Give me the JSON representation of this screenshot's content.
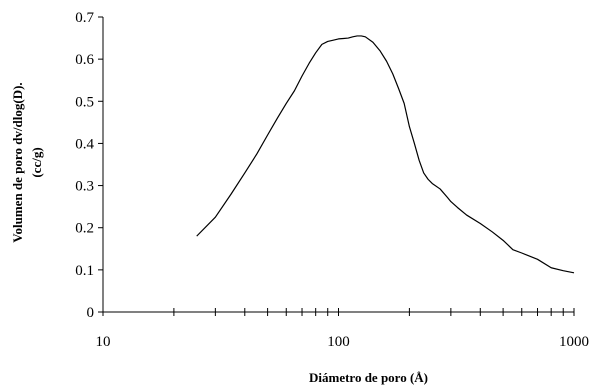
{
  "chart_data": {
    "type": "line",
    "title": "",
    "xlabel": "Diámetro de poro (Å)",
    "ylabel": "Volumen de poro dv/dlog(D).",
    "ylabel_unit": "(cc/g)",
    "x_scale": "log",
    "xlim": [
      10,
      1000
    ],
    "ylim": [
      0,
      0.7
    ],
    "x_ticks": [
      10,
      100,
      1000
    ],
    "x_tick_labels": [
      "10",
      "100",
      "1000"
    ],
    "y_ticks": [
      0,
      0.1,
      0.2,
      0.3,
      0.4,
      0.5,
      0.6,
      0.7
    ],
    "y_tick_labels": [
      "0",
      "0.1",
      "0.2",
      "0.3",
      "0.4",
      "0.5",
      "0.6",
      "0.7"
    ],
    "grid": false,
    "legend": "none",
    "line_color": "#000000",
    "series": [
      {
        "x": [
          25,
          30,
          35,
          40,
          45,
          50,
          55,
          60,
          65,
          70,
          75,
          80,
          85,
          90,
          95,
          100,
          105,
          110,
          115,
          120,
          125,
          130,
          140,
          150,
          160,
          170,
          180,
          190,
          200,
          210,
          220,
          230,
          240,
          250,
          270,
          290,
          300,
          320,
          350,
          400,
          450,
          500,
          550,
          600,
          700,
          800,
          900,
          1000
        ],
        "y": [
          0.18,
          0.225,
          0.28,
          0.33,
          0.375,
          0.42,
          0.46,
          0.495,
          0.525,
          0.56,
          0.59,
          0.615,
          0.635,
          0.642,
          0.645,
          0.648,
          0.649,
          0.65,
          0.653,
          0.655,
          0.655,
          0.653,
          0.64,
          0.62,
          0.595,
          0.565,
          0.53,
          0.495,
          0.44,
          0.4,
          0.36,
          0.33,
          0.315,
          0.305,
          0.292,
          0.272,
          0.262,
          0.248,
          0.23,
          0.21,
          0.19,
          0.17,
          0.148,
          0.14,
          0.125,
          0.105,
          0.098,
          0.093
        ]
      }
    ]
  }
}
